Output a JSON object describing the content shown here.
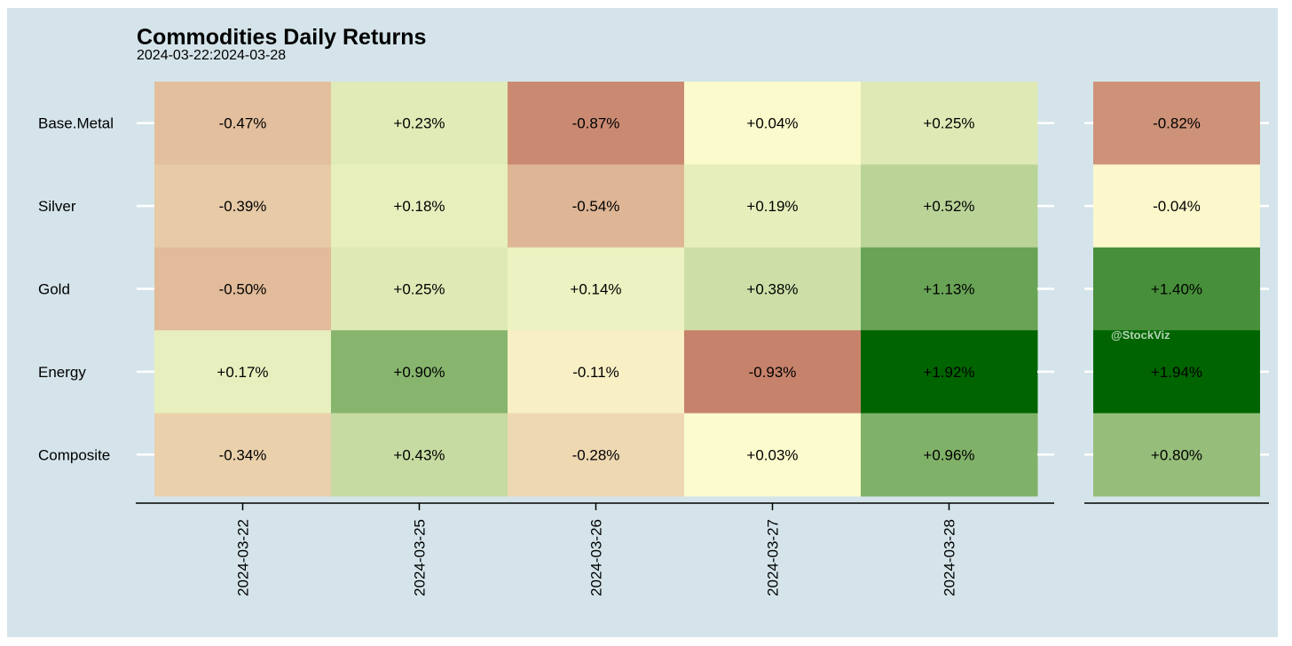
{
  "title": "Commodities Daily Returns",
  "subtitle": "2024-03-22:2024-03-28",
  "watermark": "@StockViz",
  "colors": {
    "background": "#d4e4ea",
    "negative_extreme": "#8b0000",
    "neutral": "#fffdd0",
    "positive_extreme": "#006400"
  },
  "chart_data": [
    {
      "type": "heatmap",
      "name": "daily",
      "rows": [
        "Base.Metal",
        "Silver",
        "Gold",
        "Energy",
        "Composite"
      ],
      "columns": [
        "2024-03-22",
        "2024-03-25",
        "2024-03-26",
        "2024-03-27",
        "2024-03-28"
      ],
      "values": [
        [
          -0.47,
          0.23,
          -0.87,
          0.04,
          0.25
        ],
        [
          -0.39,
          0.18,
          -0.54,
          0.19,
          0.52
        ],
        [
          -0.5,
          0.25,
          0.14,
          0.38,
          1.13
        ],
        [
          0.17,
          0.9,
          -0.11,
          -0.93,
          1.92
        ],
        [
          -0.34,
          0.43,
          -0.28,
          0.03,
          0.96
        ]
      ],
      "labels": [
        [
          "-0.47%",
          "+0.23%",
          "-0.87%",
          "+0.04%",
          "+0.25%"
        ],
        [
          "-0.39%",
          "+0.18%",
          "-0.54%",
          "+0.19%",
          "+0.52%"
        ],
        [
          "-0.50%",
          "+0.25%",
          "+0.14%",
          "+0.38%",
          "+1.13%"
        ],
        [
          "+0.17%",
          "+0.90%",
          "-0.11%",
          "-0.93%",
          "+1.92%"
        ],
        [
          "-0.34%",
          "+0.43%",
          "-0.28%",
          "+0.03%",
          "+0.96%"
        ]
      ]
    },
    {
      "type": "heatmap",
      "name": "total",
      "rows": [
        "Base.Metal",
        "Silver",
        "Gold",
        "Energy",
        "Composite"
      ],
      "values": [
        -0.82,
        -0.04,
        1.4,
        1.94,
        0.8
      ],
      "labels": [
        "-0.82%",
        "-0.04%",
        "+1.40%",
        "+1.94%",
        "+0.80%"
      ]
    }
  ]
}
